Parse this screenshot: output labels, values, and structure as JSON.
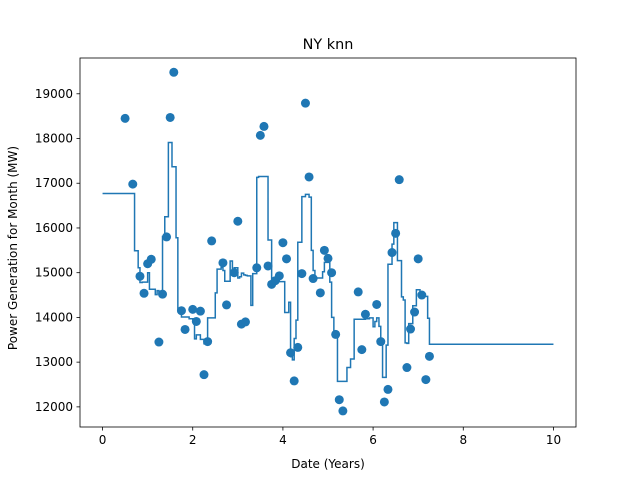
{
  "chart_data": {
    "type": "line+scatter",
    "title": "NY knn",
    "xlabel": "Date (Years)",
    "ylabel": "Power Generation for Month (MW)",
    "xlim": [
      -0.5,
      10.5
    ],
    "ylim": [
      11550,
      19800
    ],
    "xticks": [
      0,
      2,
      4,
      6,
      8,
      10
    ],
    "yticks": [
      12000,
      13000,
      14000,
      15000,
      16000,
      17000,
      18000,
      19000
    ],
    "grid": false,
    "color": "#1f77b4",
    "scatter": {
      "x": [
        0.5,
        0.67,
        0.83,
        0.92,
        1.0,
        1.08,
        1.25,
        1.33,
        1.42,
        1.5,
        1.58,
        1.75,
        1.83,
        2.0,
        2.08,
        2.17,
        2.25,
        2.33,
        2.42,
        2.67,
        2.75,
        2.92,
        3.0,
        3.08,
        3.17,
        3.42,
        3.5,
        3.58,
        3.67,
        3.75,
        3.83,
        3.92,
        4.0,
        4.08,
        4.17,
        4.25,
        4.33,
        4.42,
        4.5,
        4.58,
        4.67,
        4.83,
        4.92,
        5.0,
        5.08,
        5.17,
        5.25,
        5.33,
        5.67,
        5.75,
        5.83,
        6.08,
        6.17,
        6.25,
        6.33,
        6.42,
        6.5,
        6.58,
        6.75,
        6.83,
        6.92,
        7.0,
        7.08,
        7.17,
        7.25
      ],
      "y": [
        18450,
        16980,
        14920,
        14540,
        15200,
        15300,
        13450,
        14520,
        15800,
        18470,
        19480,
        14150,
        13730,
        14180,
        13910,
        14140,
        12720,
        13460,
        15710,
        15220,
        14280,
        15000,
        16150,
        13850,
        13900,
        15110,
        18070,
        18270,
        15150,
        14740,
        14820,
        14930,
        15670,
        15310,
        13210,
        12580,
        13330,
        14980,
        18790,
        17140,
        14870,
        14550,
        15500,
        15320,
        15000,
        13620,
        12160,
        11910,
        14570,
        13280,
        14070,
        14290,
        13460,
        12110,
        12390,
        15450,
        15880,
        17080,
        12880,
        13740,
        14120,
        15310,
        14500,
        12610,
        13130
      ]
    },
    "line": {
      "x": [
        0.0,
        0.67,
        0.71,
        0.79,
        0.83,
        0.88,
        1.0,
        1.04,
        1.17,
        1.21,
        1.25,
        1.29,
        1.33,
        1.38,
        1.42,
        1.46,
        1.5,
        1.54,
        1.63,
        1.67,
        1.71,
        1.75,
        1.83,
        1.92,
        2.0,
        2.04,
        2.08,
        2.17,
        2.25,
        2.33,
        2.46,
        2.5,
        2.54,
        2.63,
        2.67,
        2.71,
        2.79,
        2.83,
        2.88,
        2.92,
        3.0,
        3.04,
        3.08,
        3.13,
        3.17,
        3.21,
        3.29,
        3.33,
        3.42,
        3.46,
        3.63,
        3.67,
        3.71,
        3.75,
        3.79,
        3.83,
        3.92,
        4.0,
        4.04,
        4.13,
        4.17,
        4.21,
        4.25,
        4.29,
        4.33,
        4.42,
        4.46,
        4.5,
        4.58,
        4.63,
        4.67,
        4.71,
        4.83,
        4.88,
        4.92,
        5.0,
        5.04,
        5.08,
        5.13,
        5.17,
        5.21,
        5.25,
        5.33,
        5.42,
        5.46,
        5.5,
        5.58,
        5.63,
        5.83,
        5.92,
        6.0,
        6.04,
        6.08,
        6.13,
        6.17,
        6.21,
        6.25,
        6.29,
        6.33,
        6.38,
        6.42,
        6.46,
        6.5,
        6.54,
        6.63,
        6.67,
        6.71,
        6.75,
        6.79,
        6.83,
        6.88,
        6.92,
        6.96,
        7.0,
        7.04,
        7.08,
        7.13,
        7.21,
        7.25,
        10.0
      ],
      "y": [
        16770,
        16770,
        15490,
        15110,
        14780,
        14790,
        15000,
        14630,
        14510,
        14600,
        14550,
        14520,
        15810,
        16250,
        16250,
        17910,
        17910,
        17370,
        15780,
        14150,
        14150,
        14010,
        14010,
        13970,
        13910,
        13520,
        13610,
        13510,
        13410,
        13990,
        13990,
        14550,
        15080,
        15120,
        15050,
        14810,
        14810,
        15260,
        15080,
        15110,
        14880,
        14910,
        14990,
        14950,
        14940,
        14930,
        14270,
        14980,
        17130,
        17150,
        17150,
        15730,
        15730,
        14780,
        14880,
        14840,
        14800,
        14800,
        14110,
        14340,
        13120,
        13050,
        13530,
        13940,
        15680,
        16700,
        16700,
        16750,
        16690,
        15500,
        15050,
        14880,
        14880,
        15020,
        15230,
        15230,
        14790,
        14000,
        13590,
        13590,
        12570,
        12570,
        12570,
        12880,
        12880,
        13070,
        13960,
        13960,
        13970,
        13990,
        13790,
        13910,
        13990,
        13800,
        13500,
        12660,
        12660,
        13380,
        15190,
        15190,
        15640,
        16120,
        16120,
        15270,
        14460,
        14390,
        13430,
        13420,
        13860,
        13860,
        14260,
        14260,
        14620,
        14620,
        14440,
        14440,
        14470,
        13980,
        13400,
        13400
      ]
    }
  }
}
